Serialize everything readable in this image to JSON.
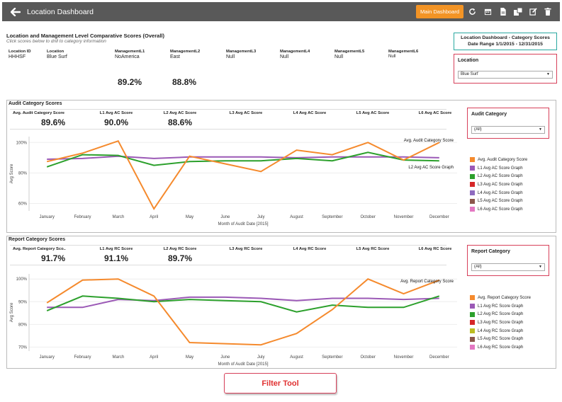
{
  "header": {
    "title": "Location Dashboard",
    "main_dashboard_label": "Main Dashboard",
    "toolbar_icons": [
      "refresh-icon",
      "calendar-icon",
      "document-icon",
      "export-icon",
      "edit-icon",
      "trash-icon"
    ]
  },
  "overall": {
    "title": "Location and Management Level Comparative Scores (Overall)",
    "subtitle": "Click scores below to drill to category information",
    "columns": [
      {
        "header": "Location ID",
        "value": "HHHSF"
      },
      {
        "header": "Location",
        "value": "Blue Surf"
      },
      {
        "header": "ManagementL1",
        "value": "NoAmerica"
      },
      {
        "header": "ManagementL2",
        "value": "East"
      },
      {
        "header": "ManagementL3",
        "value": "Null"
      },
      {
        "header": "ManagementL4",
        "value": "Null"
      },
      {
        "header": "ManagementL5",
        "value": "Null"
      },
      {
        "header": "ManagementL6",
        "value": "Null"
      }
    ],
    "scores": {
      "l1": "89.2%",
      "l2": "88.8%"
    }
  },
  "category_box": {
    "line1": "Location Dashboard - Category Scores",
    "line2": "Date Range 1/1/2015 - 12/31/2015"
  },
  "location_filter": {
    "label": "Location",
    "value": "Blue Surf"
  },
  "audit": {
    "title": "Audit Category Scores",
    "kpis": [
      {
        "header": "Avg. Audit Category Score",
        "value": "89.6%"
      },
      {
        "header": "L1 Avg AC Score",
        "value": "90.0%"
      },
      {
        "header": "L2 Avg AC Score",
        "value": "88.6%"
      },
      {
        "header": "L3 Avg AC Score",
        "value": ""
      },
      {
        "header": "L4 Avg AC Score",
        "value": ""
      },
      {
        "header": "L5 Avg AC Score",
        "value": ""
      },
      {
        "header": "L6 Avg AC Score",
        "value": ""
      }
    ],
    "filter": {
      "label": "Audit Category",
      "value": "(All)"
    },
    "legend": [
      {
        "name": "Avg. Audit Category Score",
        "color": "#f58a2d"
      },
      {
        "name": "L1 Avg AC Score Graph",
        "color": "#9b59b6"
      },
      {
        "name": "L2 Avg AC Score Graph",
        "color": "#2ca02c"
      },
      {
        "name": "L3 Avg AC Score Graph",
        "color": "#d62728"
      },
      {
        "name": "L4 Avg AC Score Graph",
        "color": "#8e6bbf"
      },
      {
        "name": "L5 Avg AC Score Graph",
        "color": "#8c564b"
      },
      {
        "name": "L6 Avg AC Score Graph",
        "color": "#e377c2"
      }
    ]
  },
  "report": {
    "title": "Report Category Scores",
    "kpis": [
      {
        "header": "Avg. Report Category Sco..",
        "value": "91.7%"
      },
      {
        "header": "L1 Avg RC Score",
        "value": "91.1%"
      },
      {
        "header": "L2 Avg RC Score",
        "value": "89.7%"
      },
      {
        "header": "L3 Avg RC Score",
        "value": ""
      },
      {
        "header": "L4 Avg RC Score",
        "value": ""
      },
      {
        "header": "L5 Avg RC Score",
        "value": ""
      },
      {
        "header": "L6 Avg RC Score",
        "value": ""
      }
    ],
    "filter": {
      "label": "Report Category",
      "value": "(All)"
    },
    "legend": [
      {
        "name": "Avg. Report Category Score",
        "color": "#f58a2d"
      },
      {
        "name": "L1 Avg RC Score Graph",
        "color": "#9b59b6"
      },
      {
        "name": "L2 Avg RC Score Graph",
        "color": "#2ca02c"
      },
      {
        "name": "L3 Avg RC Score Graph",
        "color": "#d62728"
      },
      {
        "name": "L4 Avg RC Score Graph",
        "color": "#bcbd22"
      },
      {
        "name": "L5 Avg RC Score Graph",
        "color": "#8c564b"
      },
      {
        "name": "L6 Avg RC Score Graph",
        "color": "#e377c2"
      }
    ]
  },
  "filter_tool_label": "Filter Tool",
  "chart_data": [
    {
      "type": "line",
      "title": "",
      "xlabel": "Month of Audit Date [2015]",
      "ylabel": "Avg Score",
      "categories": [
        "January",
        "February",
        "March",
        "April",
        "May",
        "June",
        "July",
        "August",
        "September",
        "October",
        "November",
        "December"
      ],
      "yticks": [
        "100%",
        "80%",
        "60%"
      ],
      "ylim": [
        57,
        102
      ],
      "annotations": [
        "Avg. Audit Category Score",
        "L2 Avg AC Score Graph"
      ],
      "series": [
        {
          "name": "Avg. Audit Category Score",
          "color": "#f58a2d",
          "values": [
            87.5,
            93,
            101,
            56.5,
            91,
            86,
            81,
            95,
            92,
            100,
            88.5,
            100
          ]
        },
        {
          "name": "L1 Avg AC Score Graph",
          "color": "#9b59b6",
          "values": [
            89,
            89.5,
            91,
            89.5,
            90.5,
            90.5,
            90.5,
            90,
            90.5,
            90.5,
            90.5,
            90
          ]
        },
        {
          "name": "L2 Avg AC Score Graph",
          "color": "#2ca02c",
          "values": [
            84,
            92,
            91.5,
            85,
            87.5,
            88,
            88,
            89.5,
            88,
            93.5,
            88.5,
            88
          ]
        }
      ]
    },
    {
      "type": "line",
      "title": "",
      "xlabel": "Month of Audit Date [2015]",
      "ylabel": "Avg Score",
      "categories": [
        "January",
        "February",
        "March",
        "April",
        "May",
        "June",
        "July",
        "August",
        "September",
        "October",
        "November",
        "December"
      ],
      "yticks": [
        "100%",
        "90%",
        "80%",
        "70%"
      ],
      "ylim": [
        69.5,
        101
      ],
      "annotations": [
        "Avg. Report Category Score"
      ],
      "series": [
        {
          "name": "Avg. Report Category Score",
          "color": "#f58a2d",
          "values": [
            89.5,
            99.5,
            100,
            92.5,
            72,
            71.5,
            71,
            76,
            86.5,
            100,
            93.5,
            99.5
          ]
        },
        {
          "name": "L1 Avg RC Score Graph",
          "color": "#9b59b6",
          "values": [
            87.5,
            87.5,
            91,
            90.5,
            92,
            92,
            91.5,
            90.5,
            91.5,
            91.5,
            91,
            91.5
          ]
        },
        {
          "name": "L2 Avg RC Score Graph",
          "color": "#2ca02c",
          "values": [
            86,
            92.5,
            91.5,
            90,
            91,
            90.5,
            90,
            85.5,
            88.5,
            87.5,
            87.5,
            92.5
          ]
        }
      ]
    }
  ]
}
